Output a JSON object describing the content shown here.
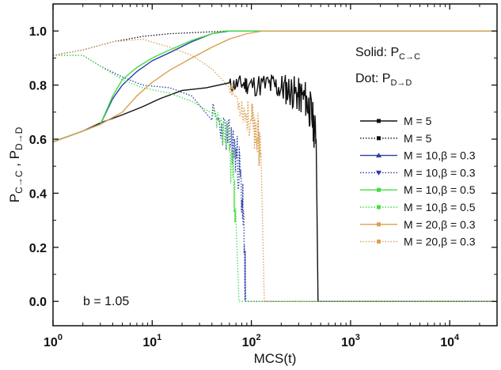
{
  "chart_data": {
    "type": "line",
    "x_scale": "log",
    "xlabel": "MCS(t)",
    "ylabel": "P_{C→C} , P_{D→D}",
    "ylabel_parts": {
      "p1": "P",
      "s1": "C→C",
      "sep": " , ",
      "p2": "P",
      "s2": "D→D"
    },
    "xlim": [
      1,
      30000
    ],
    "ylim": [
      -0.09,
      1.1
    ],
    "x_ticks": [
      {
        "value": 1,
        "base": "10",
        "exp": "0"
      },
      {
        "value": 10,
        "base": "10",
        "exp": "1"
      },
      {
        "value": 100,
        "base": "10",
        "exp": "2"
      },
      {
        "value": 1000,
        "base": "10",
        "exp": "3"
      },
      {
        "value": 10000,
        "base": "10",
        "exp": "4"
      }
    ],
    "y_ticks": [
      {
        "value": 0.0,
        "label": "0.0"
      },
      {
        "value": 0.2,
        "label": "0.2"
      },
      {
        "value": 0.4,
        "label": "0.4"
      },
      {
        "value": 0.6,
        "label": "0.6"
      },
      {
        "value": 0.8,
        "label": "0.8"
      },
      {
        "value": 1.0,
        "label": "1.0"
      }
    ],
    "annotations": {
      "b_label": "b = 1.05",
      "solid_prefix": "Solid: P",
      "solid_sub": "C→C",
      "dot_prefix": "Dot: P",
      "dot_sub": "D→D"
    },
    "series": [
      {
        "name": "M = 5",
        "style": "solid",
        "color": "#111111",
        "marker": "square",
        "points": [
          [
            1,
            0.59
          ],
          [
            2,
            0.63
          ],
          [
            3,
            0.66
          ],
          [
            5,
            0.69
          ],
          [
            8,
            0.72
          ],
          [
            12,
            0.75
          ],
          [
            20,
            0.78
          ],
          [
            35,
            0.79
          ],
          [
            60,
            0.8
          ],
          [
            80,
            0.805
          ],
          [
            100,
            0.8
          ],
          [
            150,
            0.8
          ],
          [
            200,
            0.79
          ],
          [
            250,
            0.78
          ],
          [
            300,
            0.76
          ],
          [
            350,
            0.75
          ],
          [
            400,
            0.7
          ],
          [
            450,
            0.6
          ],
          [
            470,
            0.0
          ],
          [
            30000,
            0.0
          ]
        ]
      },
      {
        "name": "M = 5",
        "style": "dotted",
        "color": "#111111",
        "marker": "square",
        "points": [
          [
            1,
            0.91
          ],
          [
            2,
            0.93
          ],
          [
            4,
            0.96
          ],
          [
            8,
            0.98
          ],
          [
            15,
            0.99
          ],
          [
            30,
            0.995
          ],
          [
            60,
            1.0
          ],
          [
            100,
            1.0
          ],
          [
            30000,
            1.0
          ]
        ]
      },
      {
        "name": "M = 10,β = 0.3",
        "style": "solid",
        "color": "#2b3ea8",
        "marker": "triangle-up",
        "points": [
          [
            1,
            0.59
          ],
          [
            2,
            0.63
          ],
          [
            3,
            0.655
          ],
          [
            4,
            0.75
          ],
          [
            5,
            0.8
          ],
          [
            7,
            0.85
          ],
          [
            10,
            0.89
          ],
          [
            15,
            0.92
          ],
          [
            25,
            0.96
          ],
          [
            40,
            0.99
          ],
          [
            60,
            1.0
          ],
          [
            100,
            1.0
          ],
          [
            30000,
            1.0
          ]
        ]
      },
      {
        "name": "M = 10,β = 0.3",
        "style": "dotted",
        "color": "#2b3ea8",
        "marker": "triangle-down",
        "points": [
          [
            1,
            0.91
          ],
          [
            2,
            0.91
          ],
          [
            3,
            0.87
          ],
          [
            5,
            0.83
          ],
          [
            8,
            0.8
          ],
          [
            15,
            0.79
          ],
          [
            25,
            0.76
          ],
          [
            40,
            0.7
          ],
          [
            55,
            0.62
          ],
          [
            65,
            0.58
          ],
          [
            75,
            0.5
          ],
          [
            82,
            0.35
          ],
          [
            88,
            0.0
          ],
          [
            30000,
            0.0
          ]
        ]
      },
      {
        "name": "M = 10,β = 0.5",
        "style": "solid",
        "color": "#44dd44",
        "marker": "square",
        "points": [
          [
            1,
            0.59
          ],
          [
            2,
            0.63
          ],
          [
            3,
            0.655
          ],
          [
            4,
            0.76
          ],
          [
            5,
            0.82
          ],
          [
            7,
            0.865
          ],
          [
            10,
            0.9
          ],
          [
            15,
            0.93
          ],
          [
            25,
            0.965
          ],
          [
            40,
            0.99
          ],
          [
            55,
            1.0
          ],
          [
            100,
            1.0
          ],
          [
            30000,
            1.0
          ]
        ]
      },
      {
        "name": "M = 10,β = 0.5",
        "style": "dotted",
        "color": "#44dd44",
        "marker": "square",
        "points": [
          [
            1,
            0.91
          ],
          [
            2,
            0.91
          ],
          [
            3,
            0.87
          ],
          [
            5,
            0.82
          ],
          [
            8,
            0.79
          ],
          [
            15,
            0.77
          ],
          [
            25,
            0.74
          ],
          [
            40,
            0.68
          ],
          [
            55,
            0.6
          ],
          [
            65,
            0.5
          ],
          [
            70,
            0.3
          ],
          [
            75,
            0.0
          ],
          [
            30000,
            0.0
          ]
        ]
      },
      {
        "name": "M = 20,β = 0.3",
        "style": "solid",
        "color": "#d9a050",
        "marker": "square",
        "points": [
          [
            1,
            0.59
          ],
          [
            2,
            0.63
          ],
          [
            3,
            0.655
          ],
          [
            5,
            0.7
          ],
          [
            7,
            0.76
          ],
          [
            10,
            0.81
          ],
          [
            15,
            0.855
          ],
          [
            25,
            0.9
          ],
          [
            40,
            0.94
          ],
          [
            60,
            0.97
          ],
          [
            90,
            0.99
          ],
          [
            130,
            1.0
          ],
          [
            30000,
            1.0
          ]
        ]
      },
      {
        "name": "M = 20,β = 0.3",
        "style": "dotted",
        "color": "#d9a050",
        "marker": "square",
        "points": [
          [
            1,
            0.91
          ],
          [
            2,
            0.93
          ],
          [
            4,
            0.96
          ],
          [
            8,
            0.97
          ],
          [
            15,
            0.94
          ],
          [
            25,
            0.91
          ],
          [
            40,
            0.86
          ],
          [
            60,
            0.8
          ],
          [
            80,
            0.72
          ],
          [
            100,
            0.66
          ],
          [
            115,
            0.62
          ],
          [
            125,
            0.55
          ],
          [
            135,
            0.0
          ],
          [
            30000,
            0.0
          ]
        ]
      }
    ]
  }
}
